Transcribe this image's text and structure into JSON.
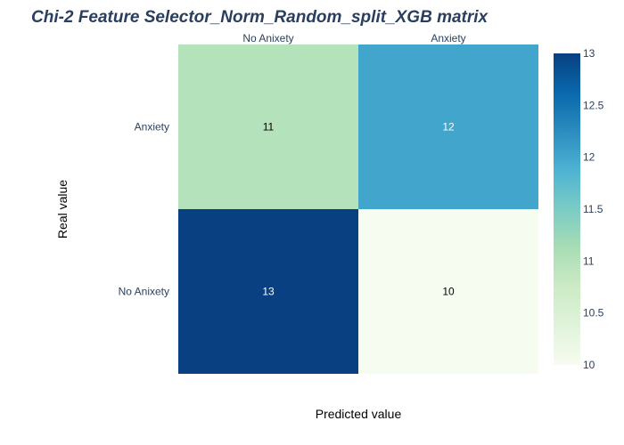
{
  "chart_data": {
    "type": "heatmap",
    "title": "Chi-2 Feature Selector_Norm_Random_split_XGB matrix",
    "xlabel": "Predicted value",
    "ylabel": "Real value",
    "x_categories": [
      "No Anixety",
      "Anxiety"
    ],
    "y_categories_top_to_bottom": [
      "Anxiety",
      "No Anixety"
    ],
    "z_top_to_bottom": [
      [
        11,
        12
      ],
      [
        13,
        10
      ]
    ],
    "colorscale": "GnBu",
    "zmin": 10,
    "zmax": 13,
    "colorbar_ticks": [
      "13",
      "12.5",
      "12",
      "11.5",
      "11",
      "10.5",
      "10"
    ],
    "colorbar_tick_values": [
      13,
      12.5,
      12,
      11.5,
      11,
      10.5,
      10
    ],
    "x_axis_side": "top",
    "grid": false,
    "legend": "colorbar-right"
  }
}
